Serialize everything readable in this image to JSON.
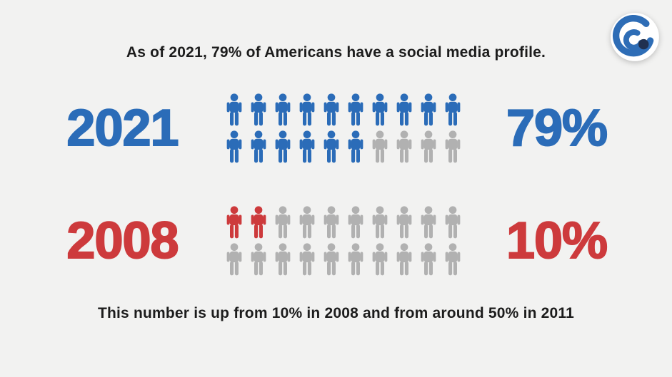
{
  "page": {
    "background": "#f2f2f1"
  },
  "header": {
    "title": "As of 2021, 79% of Americans have a social media profile."
  },
  "footer": {
    "caption": "This number is up from 10% in 2008 and from around 50% in 2011"
  },
  "logo": {
    "icon": "signal-swirl-logo",
    "arc_color": "#2e6db6",
    "dot_color": "#20304f",
    "badge_color": "#ffffff"
  },
  "colors": {
    "blue": "#2b6cb8",
    "red": "#cd3a3c",
    "gray": "#b1b1b1",
    "text": "#1c1c1c"
  },
  "chart_data": {
    "type": "pictograph",
    "title": "As of 2021, 79% of Americans have a social media profile.",
    "icon": "person",
    "icons_per_row": 10,
    "icon_rows_per_series": 2,
    "categories": [
      "2021",
      "2008"
    ],
    "series": [
      {
        "label": "2021",
        "value": 79,
        "value_label": "79%",
        "icons_total": 20,
        "icons_filled": 16,
        "fill_color": "#2b6cb8",
        "empty_color": "#b1b1b1"
      },
      {
        "label": "2008",
        "value": 10,
        "value_label": "10%",
        "icons_total": 20,
        "icons_filled": 2,
        "fill_color": "#cd3a3c",
        "empty_color": "#b1b1b1"
      }
    ],
    "footnote": "This number is up from 10% in 2008 and from around 50% in 2011",
    "legend_position": "none",
    "grid": false,
    "value_range": [
      0,
      100
    ]
  }
}
